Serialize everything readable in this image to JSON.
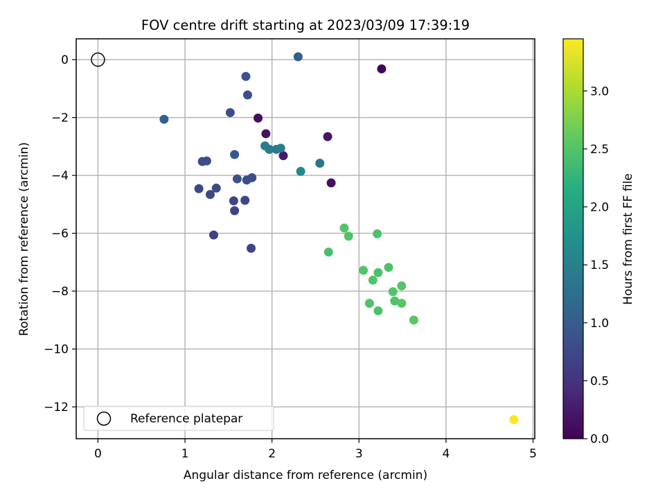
{
  "chart_data": {
    "type": "scatter",
    "title": "FOV centre drift starting at 2023/03/09 17:39:19",
    "xlabel": "Angular distance from reference (arcmin)",
    "ylabel": "Rotation from reference (arcmin)",
    "xlim": [
      -0.25,
      5.02
    ],
    "ylim": [
      -13.1,
      0.72
    ],
    "xticks": [
      0,
      1,
      2,
      3,
      4,
      5
    ],
    "yticks": [
      0,
      -2,
      -4,
      -6,
      -8,
      -10,
      -12
    ],
    "grid": true,
    "legend": {
      "position": "lower-left",
      "entries": [
        "Reference platepar"
      ]
    },
    "reference_point": {
      "name": "Reference platepar",
      "x": 0,
      "y": 0
    },
    "colorbar": {
      "label": "Hours from first FF file",
      "min": 0.0,
      "max": 3.45,
      "ticks": [
        0.0,
        0.5,
        1.0,
        1.5,
        2.0,
        2.5,
        3.0
      ],
      "tick_labels": [
        "0.0",
        "0.5",
        "1.0",
        "1.5",
        "2.0",
        "2.5",
        "3.0"
      ],
      "colormap": "viridis"
    },
    "points": [
      {
        "x": 3.26,
        "y": -0.32,
        "c": 0.03
      },
      {
        "x": 1.84,
        "y": -2.02,
        "c": 0.12
      },
      {
        "x": 1.93,
        "y": -2.56,
        "c": 0.18
      },
      {
        "x": 2.64,
        "y": -2.66,
        "c": 0.2
      },
      {
        "x": 2.13,
        "y": -3.32,
        "c": 0.26
      },
      {
        "x": 2.68,
        "y": -4.26,
        "c": 0.15
      },
      {
        "x": 1.7,
        "y": -0.58,
        "c": 0.88
      },
      {
        "x": 2.3,
        "y": 0.1,
        "c": 1.02
      },
      {
        "x": 1.72,
        "y": -1.22,
        "c": 0.83
      },
      {
        "x": 1.52,
        "y": -1.83,
        "c": 0.82
      },
      {
        "x": 0.76,
        "y": -2.06,
        "c": 1.05
      },
      {
        "x": 1.57,
        "y": -3.28,
        "c": 0.9
      },
      {
        "x": 1.2,
        "y": -3.52,
        "c": 0.82
      },
      {
        "x": 1.25,
        "y": -3.5,
        "c": 0.8
      },
      {
        "x": 1.6,
        "y": -4.12,
        "c": 0.85
      },
      {
        "x": 1.71,
        "y": -4.16,
        "c": 0.8
      },
      {
        "x": 1.77,
        "y": -4.08,
        "c": 0.82
      },
      {
        "x": 1.16,
        "y": -4.46,
        "c": 0.75
      },
      {
        "x": 1.36,
        "y": -4.44,
        "c": 0.78
      },
      {
        "x": 1.29,
        "y": -4.66,
        "c": 0.72
      },
      {
        "x": 1.56,
        "y": -4.88,
        "c": 0.7
      },
      {
        "x": 1.69,
        "y": -4.86,
        "c": 0.72
      },
      {
        "x": 1.57,
        "y": -5.22,
        "c": 0.68
      },
      {
        "x": 1.33,
        "y": -6.06,
        "c": 0.65
      },
      {
        "x": 1.76,
        "y": -6.52,
        "c": 0.7
      },
      {
        "x": 1.92,
        "y": -2.98,
        "c": 1.48
      },
      {
        "x": 1.97,
        "y": -3.1,
        "c": 1.42
      },
      {
        "x": 2.05,
        "y": -3.1,
        "c": 1.38
      },
      {
        "x": 2.1,
        "y": -3.06,
        "c": 1.46
      },
      {
        "x": 2.55,
        "y": -3.58,
        "c": 1.35
      },
      {
        "x": 2.33,
        "y": -3.86,
        "c": 1.62
      },
      {
        "x": 2.83,
        "y": -5.82,
        "c": 2.5
      },
      {
        "x": 2.88,
        "y": -6.1,
        "c": 2.48
      },
      {
        "x": 3.21,
        "y": -6.02,
        "c": 2.45
      },
      {
        "x": 2.65,
        "y": -6.65,
        "c": 2.42
      },
      {
        "x": 3.05,
        "y": -7.28,
        "c": 2.5
      },
      {
        "x": 3.34,
        "y": -7.18,
        "c": 2.46
      },
      {
        "x": 3.22,
        "y": -7.36,
        "c": 2.44
      },
      {
        "x": 3.16,
        "y": -7.62,
        "c": 2.48
      },
      {
        "x": 3.49,
        "y": -7.82,
        "c": 2.52
      },
      {
        "x": 3.39,
        "y": -8.02,
        "c": 2.5
      },
      {
        "x": 3.41,
        "y": -8.34,
        "c": 2.48
      },
      {
        "x": 3.49,
        "y": -8.42,
        "c": 2.53
      },
      {
        "x": 3.12,
        "y": -8.42,
        "c": 2.46
      },
      {
        "x": 3.22,
        "y": -8.68,
        "c": 2.45
      },
      {
        "x": 3.63,
        "y": -9.0,
        "c": 2.55
      },
      {
        "x": 4.78,
        "y": -12.44,
        "c": 3.45
      }
    ]
  }
}
